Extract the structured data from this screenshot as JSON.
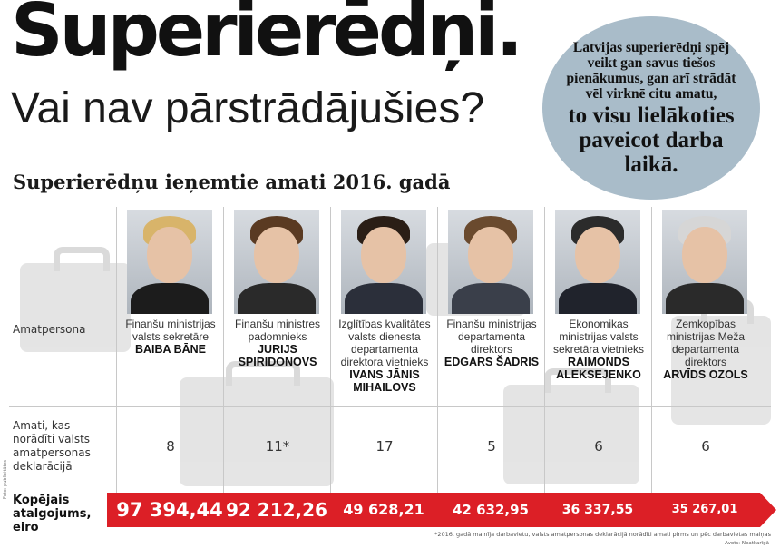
{
  "header": {
    "title": "Superierēdņi.",
    "subtitle": "Vai nav pārstrādājušies?"
  },
  "bubble": {
    "normal": "Latvijas superierēdņi spēj veikt gan savus tiešos pienākumus, gan arī strādāt vēl virknē citu amatu,",
    "emphasis": "to visu lielākoties paveicot darba laikā."
  },
  "section_heading": "Superierēdņu ieņemtie amati 2016. gadā",
  "row_labels": {
    "official": "Amatpersona",
    "positions": "Amati, kas norādīti valsts amatpersonas deklarācijā",
    "total": "Kopējais atalgojums, eiro"
  },
  "officials": [
    {
      "position": "Finanšu ministrijas valsts sekretāre",
      "name": "BAIBA BĀNE",
      "count": "8",
      "total": "97 394,44"
    },
    {
      "position": "Finanšu ministres padomnieks",
      "name": "JURIJS SPIRIDONOVS",
      "count": "11*",
      "total": "92 212,26"
    },
    {
      "position": "Izglītības kvalitātes valsts dienesta departamenta direktora vietnieks",
      "name": "IVANS JĀNIS MIHAILOVS",
      "count": "17",
      "total": "49 628,21"
    },
    {
      "position": "Finanšu ministrijas departamenta direktors",
      "name": "EDGARS ŠADRIS",
      "count": "5",
      "total": "42 632,95"
    },
    {
      "position": "Ekonomikas ministrijas valsts sekretāra vietnieks",
      "name": "RAIMONDS ALEKSEJENKO",
      "count": "6",
      "total": "36 337,55"
    },
    {
      "position": "Zemkopības ministrijas Meža departamenta direktors",
      "name": "ARVĪDS OZOLS",
      "count": "6",
      "total": "35 267,01"
    }
  ],
  "footnote": "*2016. gadā mainīja darbavietu, valsts amatpersonas deklarācijā norādīti amati pirms un pēc darbavietas maiņas",
  "credits": {
    "photo": "Foto: publicitātes",
    "source": "Avots: Neatkarīgā"
  },
  "colors": {
    "accent_red": "#dc1f26",
    "bubble_blue": "#a9bcc9"
  }
}
